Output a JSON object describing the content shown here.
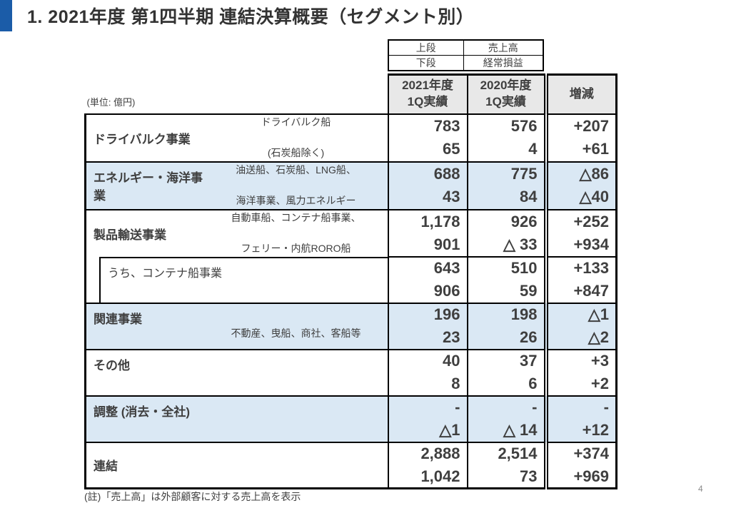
{
  "page": {
    "title": "1. 2021年度 第1四半期 連結決算概要（セグメント別）",
    "unit_label": "(単位: 億円)",
    "footnote": "(註)「売上高」は外部顧客に対する売上高を表示",
    "page_number": "4"
  },
  "legend": {
    "rows": [
      {
        "key": "上段",
        "value": "売上高"
      },
      {
        "key": "下段",
        "value": "経常損益"
      }
    ]
  },
  "table": {
    "columns": [
      {
        "lines": [
          "2021年度",
          "1Q実績"
        ]
      },
      {
        "lines": [
          "2020年度",
          "1Q実績"
        ]
      },
      {
        "lines": [
          "増減"
        ]
      }
    ],
    "rows": [
      {
        "name": "ドライバルク事業",
        "desc": [
          "ドライバルク船",
          "(石炭船除く)"
        ],
        "shaded": false,
        "nested": false,
        "revenue": [
          "783",
          "576",
          "+207"
        ],
        "ordinary_income": [
          "65",
          "4",
          "+61"
        ]
      },
      {
        "name": "エネルギー・海洋事業",
        "desc": [
          "油送船、石炭船、LNG船、",
          "海洋事業、風力エネルギー"
        ],
        "shaded": true,
        "nested": false,
        "revenue": [
          "688",
          "775",
          "△86"
        ],
        "ordinary_income": [
          "43",
          "84",
          "△40"
        ]
      },
      {
        "name": "製品輸送事業",
        "desc": [
          "自動車船、コンテナ船事業、",
          "フェリー・内航RORO船"
        ],
        "shaded": false,
        "nested": false,
        "revenue": [
          "1,178",
          "926",
          "+252"
        ],
        "ordinary_income": [
          "901",
          "△ 33",
          "+934"
        ]
      },
      {
        "name": "うち、コンテナ船事業",
        "desc": [],
        "shaded": false,
        "nested": true,
        "revenue": [
          "643",
          "510",
          "+133"
        ],
        "ordinary_income": [
          "906",
          "59",
          "+847"
        ]
      },
      {
        "name": "関連事業",
        "desc": [
          "不動産、曳船、商社、客船等"
        ],
        "shaded": true,
        "nested": false,
        "revenue": [
          "196",
          "198",
          "△1"
        ],
        "ordinary_income": [
          "23",
          "26",
          "△2"
        ]
      },
      {
        "name": "その他",
        "desc": [],
        "shaded": false,
        "nested": false,
        "revenue": [
          "40",
          "37",
          "+3"
        ],
        "ordinary_income": [
          "8",
          "6",
          "+2"
        ]
      },
      {
        "name": "調整 (消去・全社)",
        "desc": [],
        "shaded": true,
        "nested": false,
        "revenue": [
          "-",
          "-",
          "-"
        ],
        "ordinary_income": [
          "△1",
          "△ 14",
          "+12"
        ]
      },
      {
        "name": "連結",
        "desc": [],
        "shaded": false,
        "nested": false,
        "revenue": [
          "2,888",
          "2,514",
          "+374"
        ],
        "ordinary_income": [
          "1,042",
          "73",
          "+969"
        ]
      }
    ]
  },
  "colors": {
    "accent_blue": "#1B5CA8",
    "shaded_row_bg": "#DAE8F4",
    "header_bg": "#E8E8E8",
    "text": "#3F3F3F",
    "border": "#000000"
  }
}
